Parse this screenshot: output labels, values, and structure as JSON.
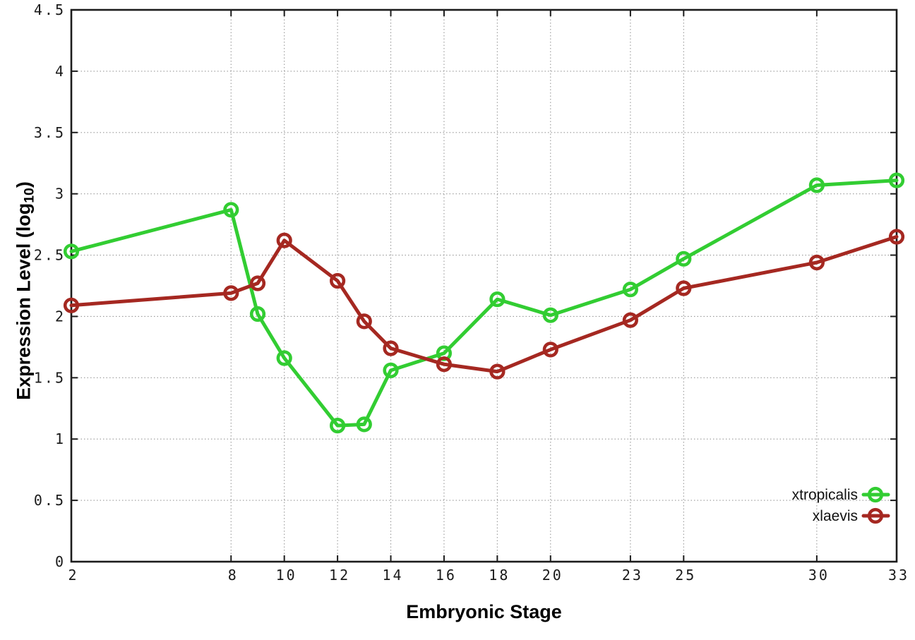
{
  "axis_titles": {
    "x": "Embryonic Stage",
    "y_main": "Expression Level (log",
    "y_sub": "10",
    "y_close": ")"
  },
  "chart_data": {
    "type": "line",
    "title": "",
    "xlabel": "Embryonic Stage",
    "ylabel": "Expression Level (log10)",
    "x": [
      2,
      8,
      9,
      10,
      12,
      13,
      14,
      16,
      18,
      20,
      23,
      25,
      30,
      33
    ],
    "series": [
      {
        "name": "xtropicalis",
        "color": "#32cd32",
        "marker": "open-circle",
        "values": [
          2.53,
          2.87,
          2.02,
          1.66,
          1.11,
          1.12,
          1.56,
          1.7,
          2.14,
          2.01,
          2.22,
          2.47,
          3.07,
          3.11
        ]
      },
      {
        "name": "xlaevis",
        "color": "#a52821",
        "marker": "open-circle",
        "values": [
          2.09,
          2.19,
          2.27,
          2.62,
          2.29,
          1.96,
          1.74,
          1.61,
          1.55,
          1.73,
          1.97,
          2.23,
          2.44,
          2.65
        ]
      }
    ],
    "xticks": [
      2,
      8,
      10,
      12,
      14,
      16,
      18,
      20,
      23,
      25,
      30,
      33
    ],
    "xtick_labels": [
      "2",
      "8",
      "10",
      "12",
      "14",
      "16",
      "18",
      "20",
      "23",
      "25",
      "30",
      "33"
    ],
    "yticks": [
      0,
      0.5,
      1,
      1.5,
      2,
      2.5,
      3,
      3.5,
      4,
      4.5
    ],
    "ytick_labels": [
      "0",
      "0.5",
      "1",
      "1.5",
      "2",
      "2.5",
      "3",
      "3.5",
      "4",
      "4.5"
    ],
    "xlim": [
      2,
      33
    ],
    "ylim": [
      0,
      4.5
    ],
    "grid": true,
    "grid_style": "dotted",
    "legend_position": "inside-bottom-right",
    "legend_labels": [
      "xtropicalis",
      "xlaevis"
    ],
    "colors": {
      "background": "#ffffff",
      "border": "#1c1c1c",
      "grid": "#999999",
      "tick_text": "#1a1a1a",
      "legend_text": "#111111"
    }
  }
}
